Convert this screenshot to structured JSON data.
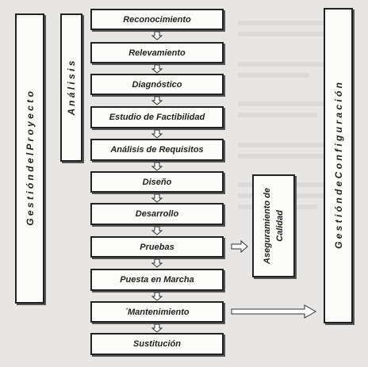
{
  "left_panel": {
    "label": "G e s t i ó n   d e l   P r o y e c t o"
  },
  "analysis_panel": {
    "label": "A n á l i s i s"
  },
  "steps": [
    {
      "label": "Reconocimiento"
    },
    {
      "label": "Relevamiento"
    },
    {
      "label": "Diagnóstico"
    },
    {
      "label": "Estudio de Factibilidad"
    },
    {
      "label": "Análisis de Requisitos"
    },
    {
      "label": "Diseño"
    },
    {
      "label": "Desarrollo"
    },
    {
      "label": "Pruebas"
    },
    {
      "label": "Puesta en Marcha"
    },
    {
      "label": "´Mantenimiento"
    },
    {
      "label": "Sustitución"
    }
  ],
  "quality_panel": {
    "line1": "Aseguramiento de",
    "line2": "Calidad"
  },
  "right_panel": {
    "label": "G e s t i ó n   d e   C o n f i g u r a c i ó n"
  }
}
